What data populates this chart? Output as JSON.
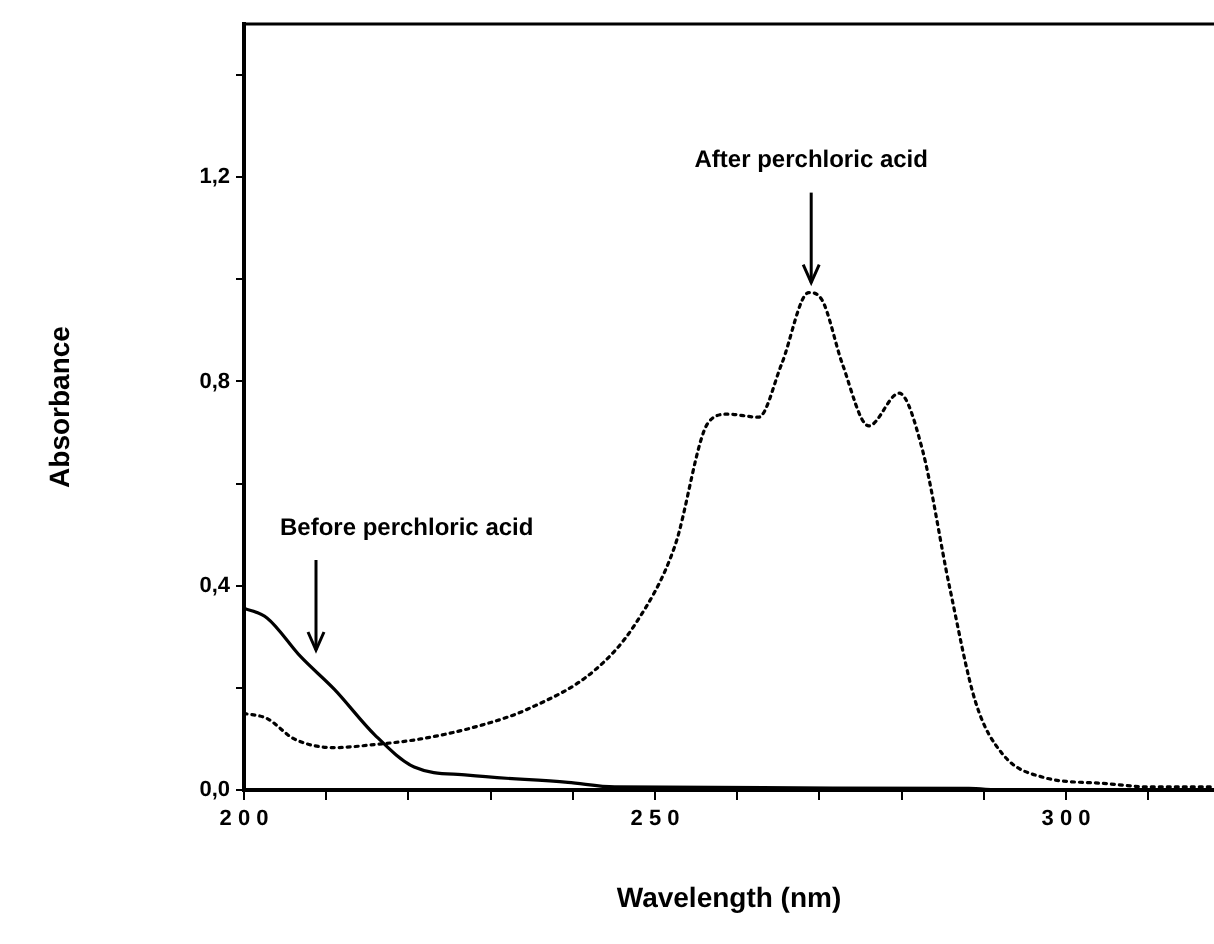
{
  "chart_data": {
    "type": "line",
    "xlabel": "Wavelength (nm)",
    "ylabel": "Absorbance",
    "xlim": [
      200,
      318
    ],
    "ylim": [
      0,
      1.5
    ],
    "xticks": [
      200,
      {
        "value": 210,
        "label": null
      },
      {
        "value": 220,
        "label": null
      },
      {
        "value": 230,
        "label": null
      },
      {
        "value": 240,
        "label": null
      },
      250,
      {
        "value": 260,
        "label": null
      },
      {
        "value": 270,
        "label": null
      },
      {
        "value": 280,
        "label": null
      },
      {
        "value": 290,
        "label": null
      },
      300,
      {
        "value": 310,
        "label": null
      }
    ],
    "yticks": [
      {
        "value": 0,
        "label": "0,0"
      },
      {
        "value": 0.2,
        "label": null
      },
      {
        "value": 0.4,
        "label": "0,4"
      },
      {
        "value": 0.6,
        "label": null
      },
      {
        "value": 0.8,
        "label": "0,8"
      },
      {
        "value": 1.0,
        "label": null
      },
      {
        "value": 1.2,
        "label": "1,2"
      },
      {
        "value": 1.4,
        "label": null
      }
    ],
    "grid": false,
    "legend": false,
    "marker": "none",
    "series": [
      {
        "color": "#000000",
        "line_style": "solid",
        "x": [
          200,
          202.8,
          206.9,
          211,
          215.9,
          220.7,
          227.2,
          239.4,
          245.1,
          288.2,
          292.3,
          318
        ],
        "values": [
          0.356,
          0.337,
          0.261,
          0.197,
          0.108,
          0.045,
          0.029,
          0.015,
          0.006,
          0.003,
          0,
          0
        ]
      },
      {
        "color": "#000000",
        "line_style": "dotted",
        "x": [
          200,
          202.8,
          206.1,
          211,
          215.9,
          221.5,
          228.9,
          234.6,
          242.7,
          247.6,
          252.4,
          256.5,
          258.9,
          262.6,
          265.4,
          268.7,
          270.3,
          272.8,
          276,
          279.7,
          282.5,
          285.8,
          289,
          292.3,
          297.2,
          304.5,
          310.2,
          318
        ],
        "values": [
          0.15,
          0.14,
          0.1,
          0.083,
          0.089,
          0.1,
          0.127,
          0.159,
          0.235,
          0.325,
          0.477,
          0.72,
          0.736,
          0.73,
          0.834,
          0.974,
          0.96,
          0.834,
          0.713,
          0.777,
          0.668,
          0.4,
          0.172,
          0.07,
          0.025,
          0.013,
          0.006,
          0.006
        ]
      }
    ],
    "annotations": [
      "Before perchloric acid",
      {
        "text": "After perchloric acid",
        "x": 269,
        "y": 0.974
      }
    ]
  }
}
